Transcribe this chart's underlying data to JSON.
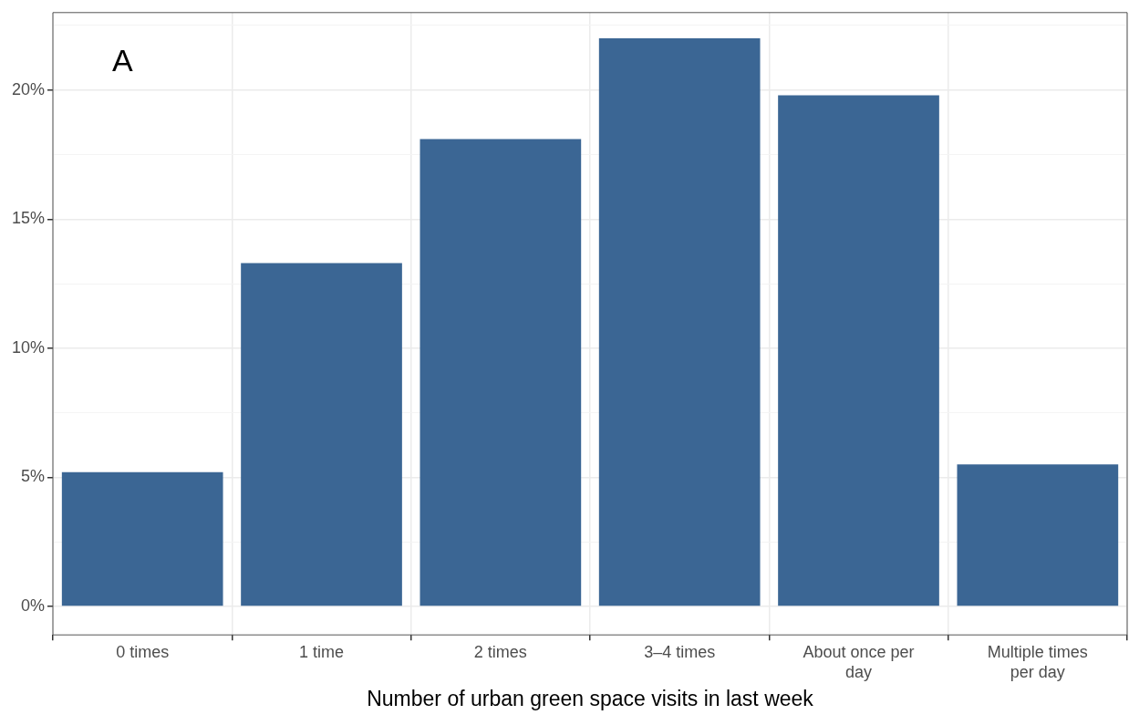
{
  "chart_data": {
    "type": "bar",
    "categories": [
      "0 times",
      "1 time",
      "2 times",
      "3–4 times",
      "About once per day",
      "Multiple times per day"
    ],
    "values": [
      5.2,
      13.3,
      18.1,
      22.0,
      19.8,
      5.5
    ],
    "color": "#3b6694",
    "xlabel": "Number of urban green space visits in last week",
    "annotations": [
      "A"
    ],
    "ylim": [
      -1.1,
      23.0
    ],
    "yticks": [
      {
        "value": 0,
        "label": "0%"
      },
      {
        "value": 2.5,
        "label": null
      },
      {
        "value": 5,
        "label": "5%"
      },
      {
        "value": 7.5,
        "label": null
      },
      {
        "value": 10,
        "label": "10%"
      },
      {
        "value": 12.5,
        "label": null
      },
      {
        "value": 15,
        "label": "15%"
      },
      {
        "value": 17.5,
        "label": null
      },
      {
        "value": 20,
        "label": "20%"
      },
      {
        "value": 22.5,
        "label": null
      }
    ],
    "grid": true,
    "legend": false
  }
}
